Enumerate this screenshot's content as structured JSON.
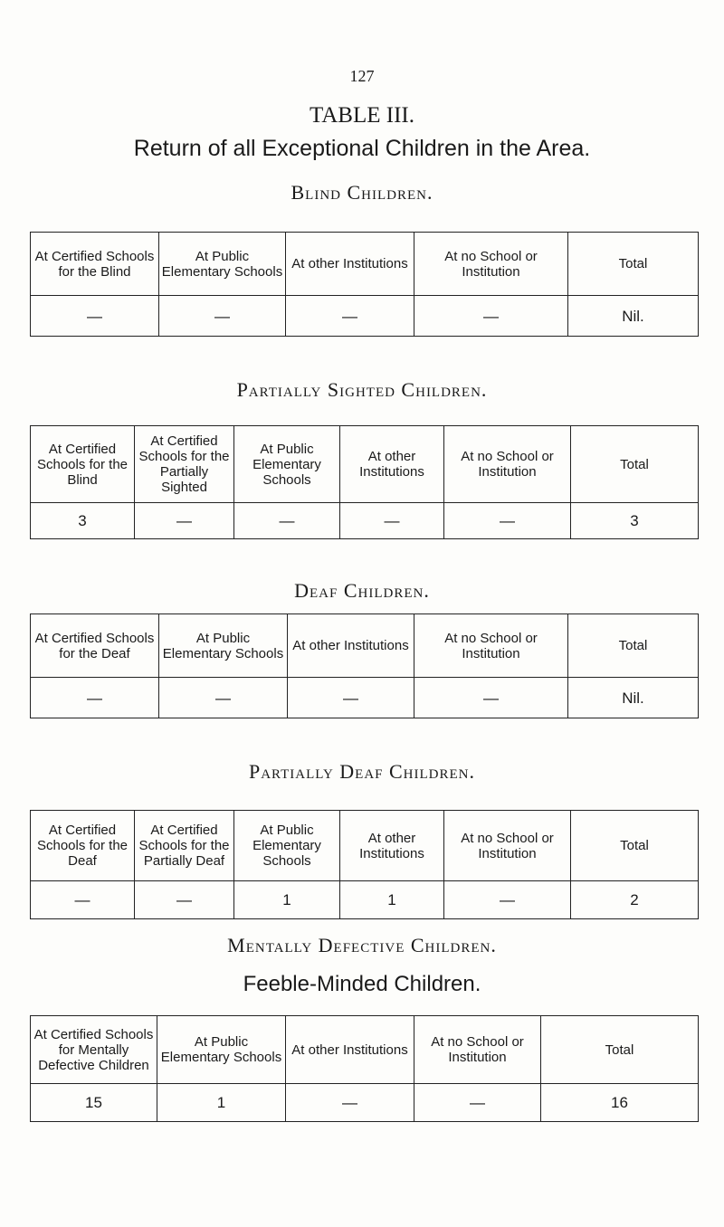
{
  "page_number": "127",
  "title": "TABLE III.",
  "subtitle": "Return of all Exceptional Children in the Area.",
  "sections": [
    {
      "heading": "Blind Children.",
      "headers": [
        "At Certified Schools for the Blind",
        "At Public Elementary Schools",
        "At other Institutions",
        "At no School or Institution",
        "Total"
      ],
      "values": [
        "—",
        "—",
        "—",
        "—",
        "Nil."
      ]
    },
    {
      "heading": "Partially Sighted Children.",
      "headers": [
        "At Certified Schools for the Blind",
        "At Certified Schools for the Partially Sighted",
        "At Public Elementary Schools",
        "At other Institutions",
        "At no School or Institution",
        "Total"
      ],
      "values": [
        "3",
        "—",
        "—",
        "—",
        "—",
        "3"
      ]
    },
    {
      "heading": "Deaf Children.",
      "headers": [
        "At Certified Schools for the Deaf",
        "At Public Elementary Schools",
        "At other Institutions",
        "At no School or Institution",
        "Total"
      ],
      "values": [
        "—",
        "—",
        "—",
        "—",
        "Nil."
      ]
    },
    {
      "heading": "Partially Deaf Children.",
      "headers": [
        "At Certified Schools for the Deaf",
        "At Certified Schools for the Partially Deaf",
        "At Public Elementary Schools",
        "At other Institutions",
        "At no School or Institution",
        "Total"
      ],
      "values": [
        "—",
        "—",
        "1",
        "1",
        "—",
        "2"
      ]
    },
    {
      "heading": "Mentally Defective Children.",
      "subheading": "Feeble-Minded Children.",
      "headers": [
        "At Certified Schools for Mentally Defective Children",
        "At Public Elementary Schools",
        "At other Institutions",
        "At no School or Institution",
        "Total"
      ],
      "values": [
        "15",
        "1",
        "—",
        "—",
        "16"
      ]
    }
  ]
}
